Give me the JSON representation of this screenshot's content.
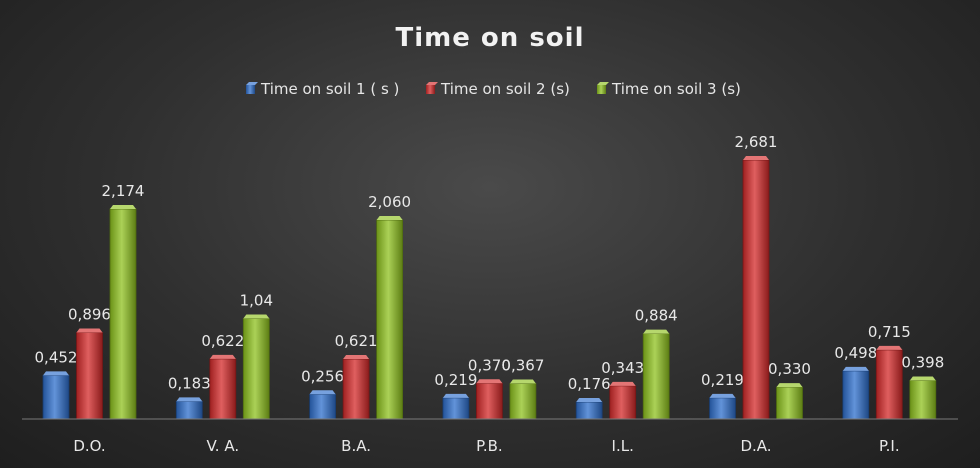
{
  "chart_data": {
    "type": "bar",
    "title": "Time on soil",
    "categories": [
      "D.O.",
      "V. A.",
      "B.A.",
      "P.B.",
      "I.L.",
      "D.A.",
      "P.I."
    ],
    "series": [
      {
        "name": "Time on soil 1 ( s )",
        "color": "#2e6fcc",
        "values": [
          0.452,
          0.183,
          0.256,
          0.219,
          0.176,
          0.219,
          0.498
        ],
        "labels": [
          "0,452",
          "0,183",
          "0,256",
          "0,219",
          "0,176",
          "0,219",
          "0,498"
        ]
      },
      {
        "name": "Time on soil 2 (s)",
        "color": "#d42a2a",
        "values": [
          0.896,
          0.622,
          0.621,
          0.37,
          0.343,
          2.681,
          0.715
        ],
        "labels": [
          "0,896",
          "0,622",
          "0,621",
          "0,370",
          "0,343",
          "2,681",
          "0,715"
        ]
      },
      {
        "name": "Time on soil 3 (s)",
        "color": "#8fc21f",
        "values": [
          2.174,
          1.04,
          2.06,
          0.367,
          0.884,
          0.33,
          0.398
        ],
        "labels": [
          "2,174",
          "1,04",
          "2,060",
          "0,367",
          "0,884",
          "0,330",
          "0,398"
        ]
      }
    ],
    "ylim": [
      0,
      2.9
    ],
    "grid": false,
    "legend_position": "top"
  }
}
